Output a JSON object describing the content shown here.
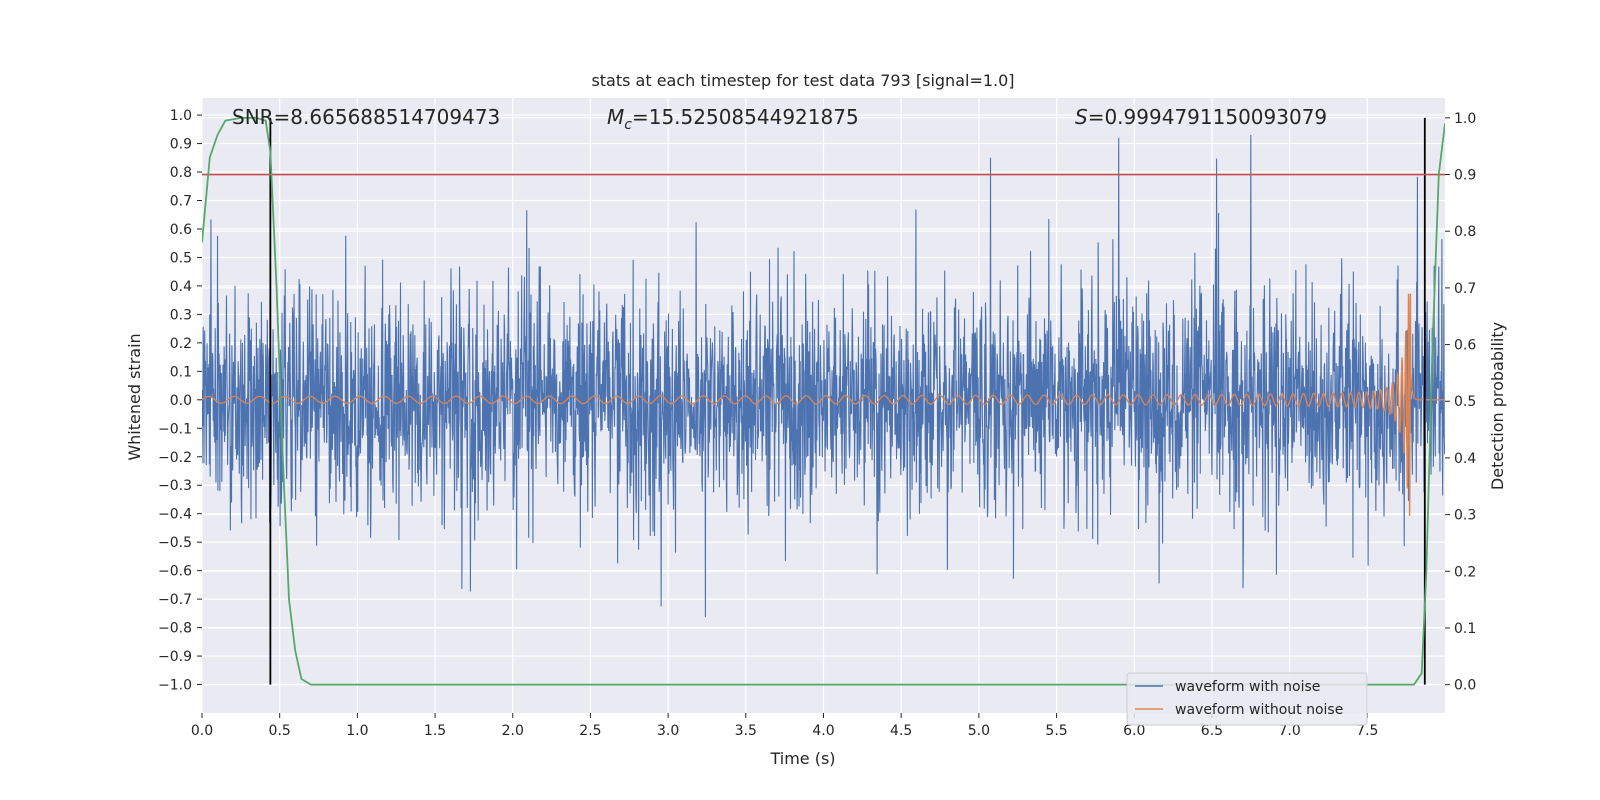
{
  "chart_data": {
    "type": "line",
    "title": "stats at each timestep for test data 793 [signal=1.0]",
    "xlabel": "Time (s)",
    "ylabel": "Whitened strain",
    "y2label": "Detection probability",
    "xlim": [
      0.0,
      8.0
    ],
    "ylim": [
      -1.1,
      1.06
    ],
    "y2lim": [
      -0.05,
      1.035
    ],
    "x_ticks": [
      "0.0",
      "0.5",
      "1.0",
      "1.5",
      "2.0",
      "2.5",
      "3.0",
      "3.5",
      "4.0",
      "4.5",
      "5.0",
      "5.5",
      "6.0",
      "6.5",
      "7.0",
      "7.5"
    ],
    "y_ticks": [
      "1.0",
      "0.9",
      "0.8",
      "0.7",
      "0.6",
      "0.5",
      "0.4",
      "0.3",
      "0.2",
      "0.1",
      "0.0",
      "−0.1",
      "−0.2",
      "−0.3",
      "−0.4",
      "−0.5",
      "−0.6",
      "−0.7",
      "−0.8",
      "−0.9",
      "−1.0"
    ],
    "y2_ticks": [
      "1.0",
      "0.9",
      "0.8",
      "0.7",
      "0.6",
      "0.5",
      "0.4",
      "0.3",
      "0.2",
      "0.1",
      "0.0"
    ],
    "grid": true,
    "legend_placement": "lower-right",
    "annotations": {
      "snr": "SNR=8.665688514709473",
      "mc_symbol": "M",
      "mc_sub": "c",
      "mc_value": "=15.52508544921875",
      "s_symbol": "S",
      "s_value": "=0.9994791150093079"
    },
    "vlines_x": [
      0.44,
      7.87
    ],
    "threshold_y2": 0.9,
    "series": [
      {
        "name": "waveform with noise",
        "color": "#4c72b0",
        "kind": "noise",
        "envelope_min": -0.55,
        "envelope_max": 0.6,
        "sample_step": 0.0025
      },
      {
        "name": "waveform without noise",
        "color": "#dd8452",
        "kind": "chirp",
        "base_amplitude": 0.012,
        "peak_x": 7.78,
        "peak_max": 0.37,
        "peak_min": -0.47
      },
      {
        "color": "#55a868",
        "axis": "right",
        "x": [
          0.0,
          0.05,
          0.1,
          0.15,
          0.25,
          0.35,
          0.41,
          0.44,
          0.48,
          0.52,
          0.56,
          0.6,
          0.64,
          0.7,
          1.0,
          2.0,
          3.0,
          4.0,
          5.0,
          6.0,
          7.0,
          7.6,
          7.8,
          7.85,
          7.88,
          7.92,
          7.96,
          8.0
        ],
        "y": [
          0.78,
          0.93,
          0.97,
          0.995,
          1.0,
          1.0,
          0.995,
          0.94,
          0.7,
          0.4,
          0.15,
          0.06,
          0.01,
          0.0,
          0.0,
          0.0,
          0.0,
          0.0,
          0.0,
          0.0,
          0.0,
          0.0,
          0.0,
          0.02,
          0.2,
          0.6,
          0.9,
          0.99
        ]
      }
    ],
    "threshold_color": "#c44e52"
  }
}
